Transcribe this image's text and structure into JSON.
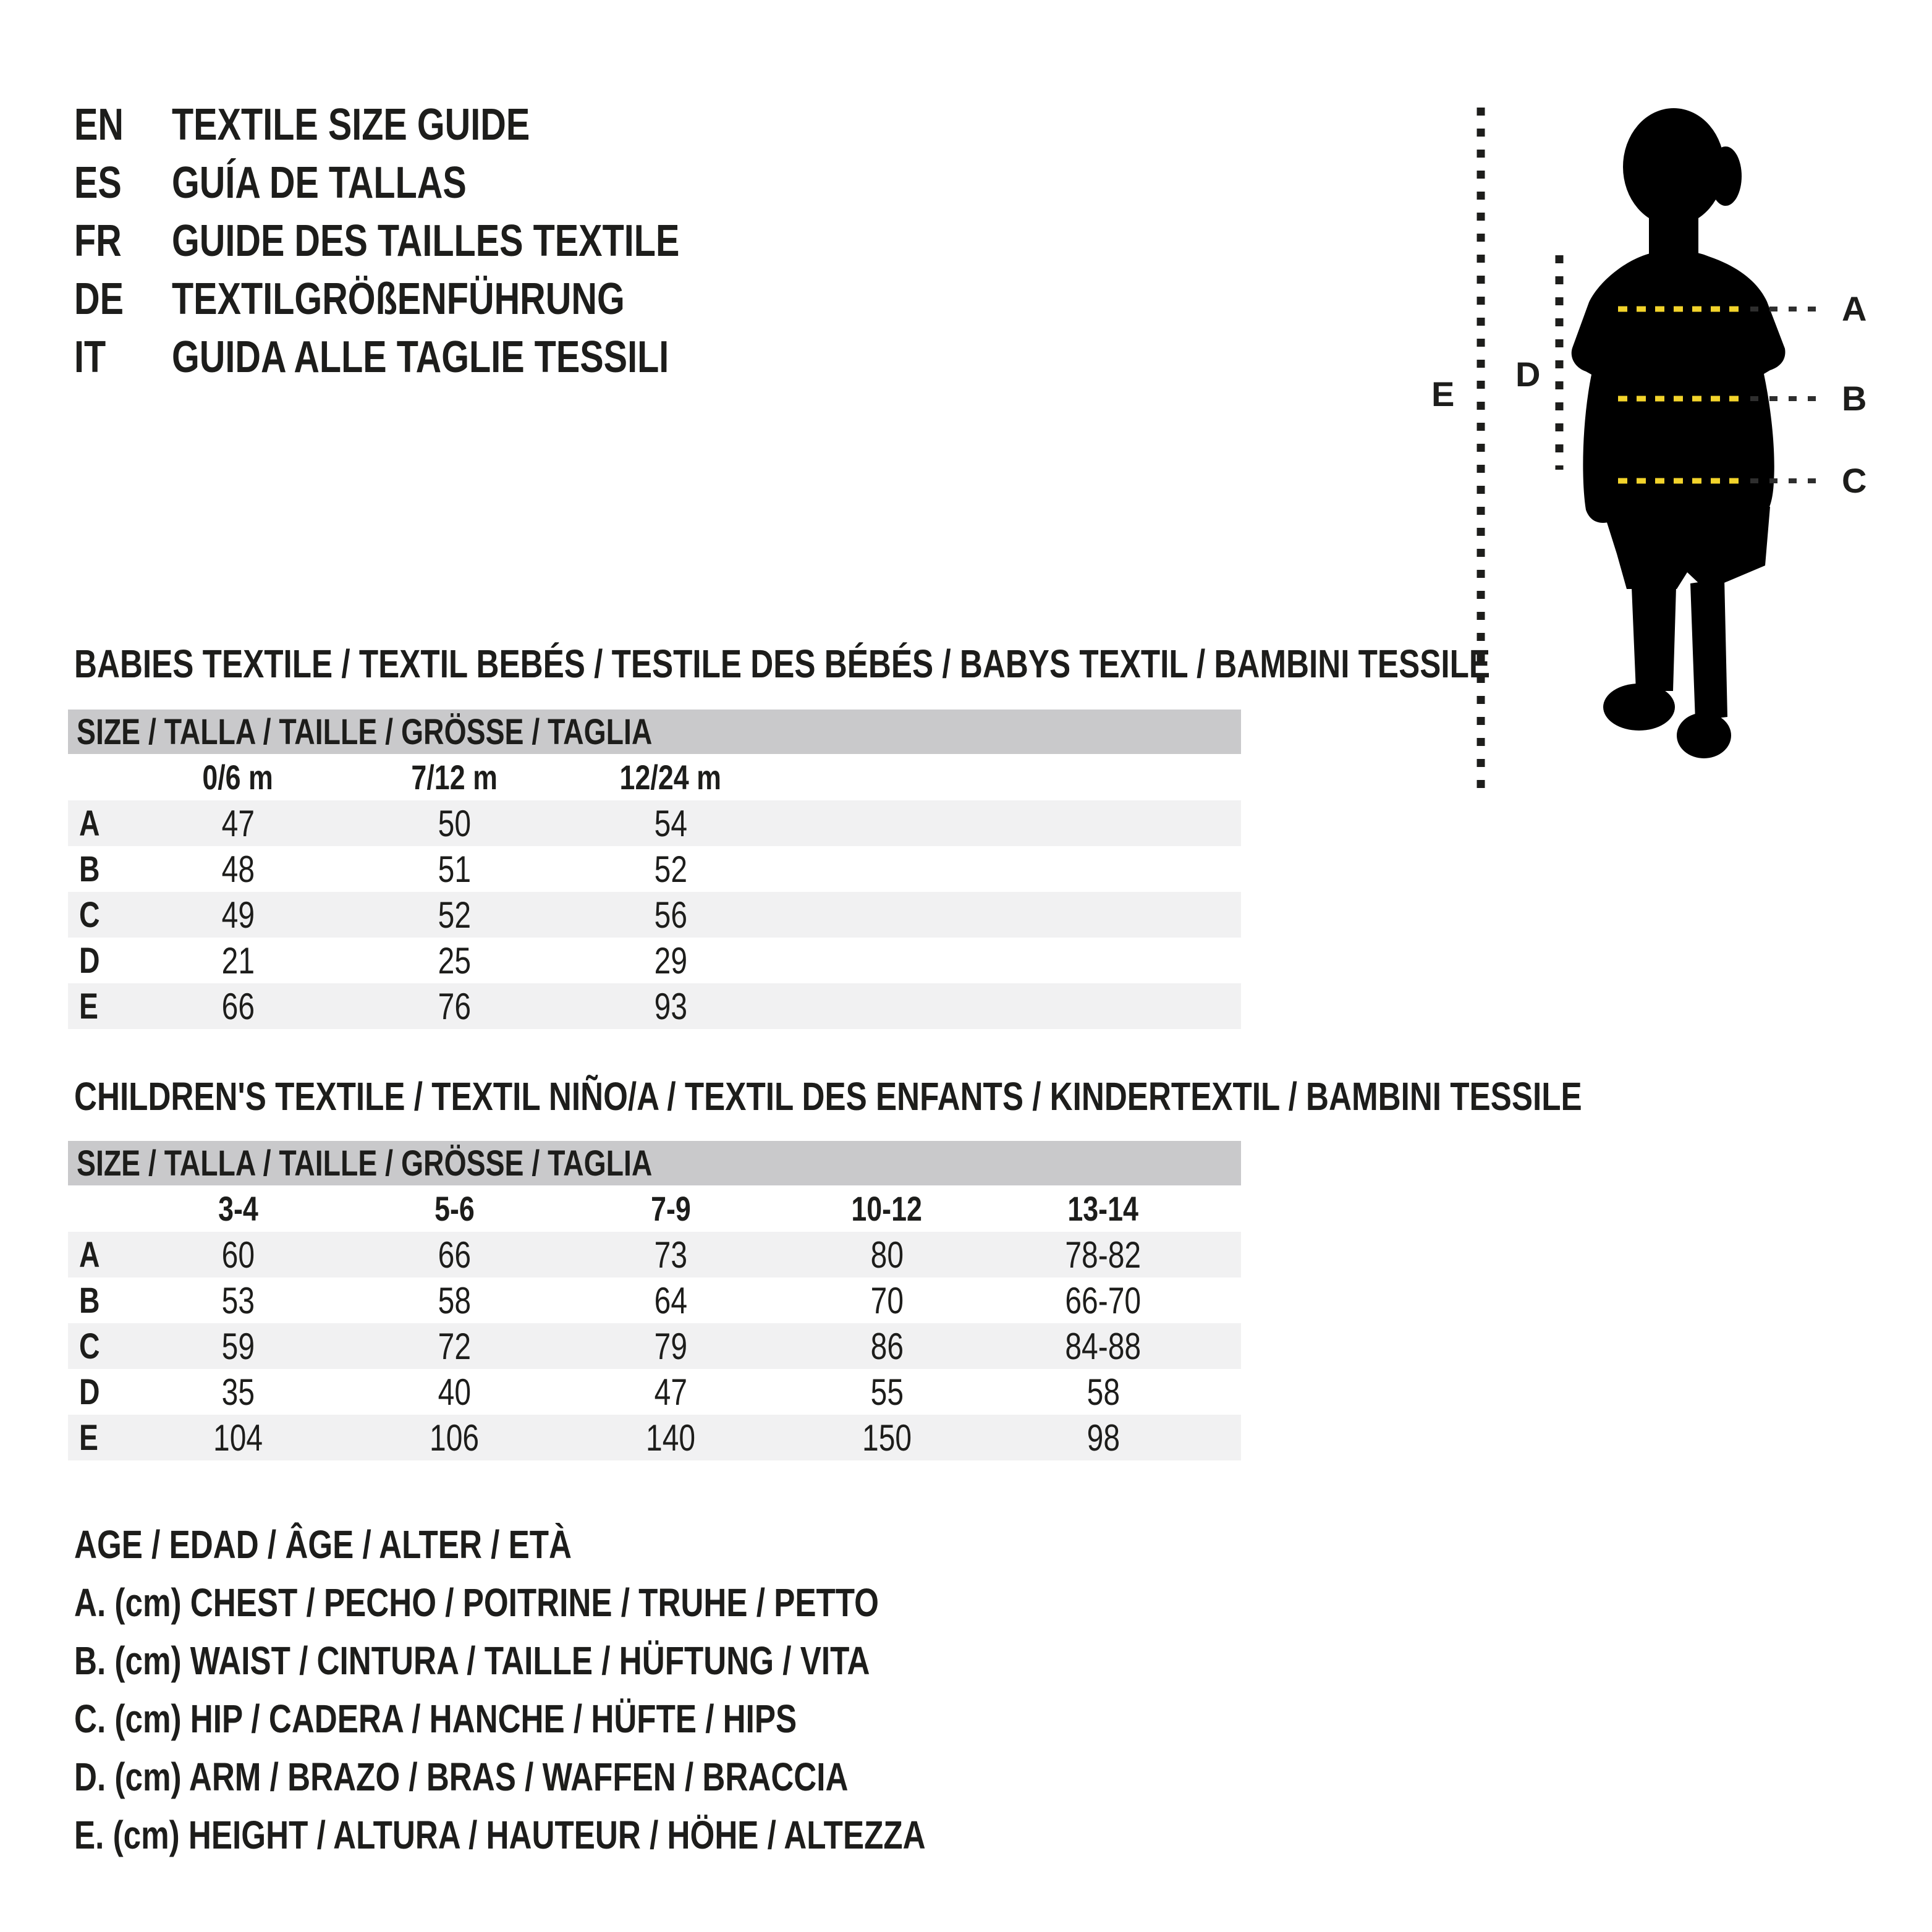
{
  "languages": [
    {
      "code": "EN",
      "label": "TEXTILE SIZE GUIDE"
    },
    {
      "code": "ES",
      "label": "GUÍA DE TALLAS"
    },
    {
      "code": "FR",
      "label": "GUIDE DES TAILLES TEXTILE"
    },
    {
      "code": "DE",
      "label": "TEXTILGRÖßENFÜHRUNG"
    },
    {
      "code": "IT",
      "label": "GUIDA ALLE TAGLIE TESSILI"
    }
  ],
  "babies_table": {
    "section_title": "BABIES TEXTILE / TEXTIL BEBÉS / TESTILE DES BÉBÉS / BABYS TEXTIL / BAMBINI TESSILE",
    "header": "SIZE / TALLA / TAILLE / GRÖSSE / TAGLIA",
    "columns": [
      "0/6 m",
      "7/12 m",
      "12/24 m"
    ],
    "rows": [
      {
        "label": "A",
        "values": [
          "47",
          "50",
          "54"
        ]
      },
      {
        "label": "B",
        "values": [
          "48",
          "51",
          "52"
        ]
      },
      {
        "label": "C",
        "values": [
          "49",
          "52",
          "56"
        ]
      },
      {
        "label": "D",
        "values": [
          "21",
          "25",
          "29"
        ]
      },
      {
        "label": "E",
        "values": [
          "66",
          "76",
          "93"
        ]
      }
    ]
  },
  "children_table": {
    "section_title": "CHILDREN'S TEXTILE / TEXTIL NIÑO/A / TEXTIL DES ENFANTS / KINDERTEXTIL / BAMBINI TESSILE",
    "header": "SIZE / TALLA / TAILLE / GRÖSSE / TAGLIA",
    "columns": [
      "3-4",
      "5-6",
      "7-9",
      "10-12",
      "13-14"
    ],
    "rows": [
      {
        "label": "A",
        "values": [
          "60",
          "66",
          "73",
          "80",
          "78-82"
        ]
      },
      {
        "label": "B",
        "values": [
          "53",
          "58",
          "64",
          "70",
          "66-70"
        ]
      },
      {
        "label": "C",
        "values": [
          "59",
          "72",
          "79",
          "86",
          "84-88"
        ]
      },
      {
        "label": "D",
        "values": [
          "35",
          "40",
          "47",
          "55",
          "58"
        ]
      },
      {
        "label": "E",
        "values": [
          "104",
          "106",
          "140",
          "150",
          "98"
        ]
      }
    ]
  },
  "legend": [
    "AGE / EDAD / ÂGE / ALTER / ETÀ",
    "A. (cm) CHEST / PECHO / POITRINE / TRUHE / PETTO",
    "B. (cm) WAIST / CINTURA / TAILLE / HÜFTUNG / VITA",
    "C. (cm) HIP / CADERA / HANCHE / HÜFTE / HIPS",
    "D. (cm) ARM / BRAZO / BRAS / WAFFEN / BRACCIA",
    "E. (cm) HEIGHT / ALTURA / HAUTEUR / HÖHE / ALTEZZA"
  ],
  "figure": {
    "labels": {
      "A": "A",
      "B": "B",
      "C": "C",
      "D": "D",
      "E": "E"
    },
    "colors": {
      "silhouette": "#000000",
      "dash_yellow": "#f2d32b",
      "dash_dark": "#2e2e2e",
      "dotted_line": "#1d1d1b"
    }
  },
  "stripe_color": "#f1f1f2",
  "header_bar_color": "#c9c9cb"
}
